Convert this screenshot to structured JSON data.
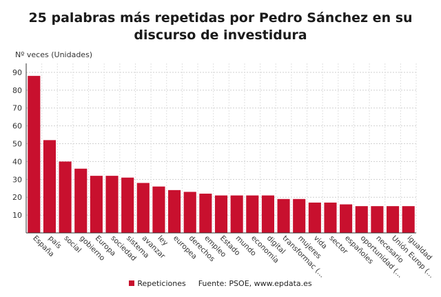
{
  "chart_data": {
    "type": "bar",
    "title": "25 palabras más repetidas por Pedro Sánchez en su discurso de investidura",
    "ylabel": "Nº veces (Unidades)",
    "xlabel": "",
    "ylim": [
      0,
      95
    ],
    "yticks": [
      10,
      20,
      30,
      40,
      50,
      60,
      70,
      80,
      90
    ],
    "grid": true,
    "categories": [
      "España",
      "país",
      "social",
      "gobierno",
      "Europa",
      "sociedad",
      "sistema",
      "avanzar",
      "ley",
      "europea",
      "derechos",
      "empleo",
      "Estado",
      "mundo",
      "economía",
      "digital",
      "transformac (...",
      "mujeres",
      "vida",
      "sector",
      "españoles",
      "oportunidad (...",
      "necesario",
      "Unión Europ (...",
      "igualdad"
    ],
    "series": [
      {
        "name": "Repeticiones",
        "color": "#c8102e",
        "values": [
          88,
          52,
          40,
          36,
          32,
          32,
          31,
          28,
          26,
          24,
          23,
          22,
          21,
          21,
          21,
          21,
          19,
          19,
          17,
          17,
          16,
          15,
          15,
          15,
          15
        ]
      }
    ],
    "legend_position": "bottom",
    "source": "Fuente: PSOE, www.epdata.es"
  }
}
